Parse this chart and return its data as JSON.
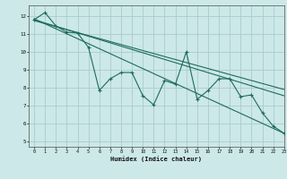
{
  "title": "",
  "xlabel": "Humidex (Indice chaleur)",
  "bg_color": "#cce8e8",
  "line_color": "#1e6b5e",
  "grid_color": "#aacccc",
  "xlim": [
    -0.5,
    23
  ],
  "ylim": [
    4.7,
    12.6
  ],
  "xticks": [
    0,
    1,
    2,
    3,
    4,
    5,
    6,
    7,
    8,
    9,
    10,
    11,
    12,
    13,
    14,
    15,
    16,
    17,
    18,
    19,
    20,
    21,
    22,
    23
  ],
  "yticks": [
    5,
    6,
    7,
    8,
    9,
    10,
    11,
    12
  ],
  "zigzag_x": [
    0,
    1,
    2,
    3,
    4,
    5,
    6,
    7,
    8,
    9,
    10,
    11,
    12,
    13,
    14,
    15,
    16,
    17,
    18,
    19,
    20,
    21,
    22,
    23
  ],
  "zigzag_y": [
    11.8,
    12.2,
    11.45,
    11.1,
    11.05,
    10.25,
    7.85,
    8.5,
    8.85,
    8.85,
    7.55,
    7.05,
    8.4,
    8.2,
    10.0,
    7.35,
    7.85,
    8.5,
    8.5,
    7.5,
    7.6,
    6.6,
    5.85,
    5.45
  ],
  "line1_x": [
    0,
    23
  ],
  "line1_y": [
    11.85,
    5.45
  ],
  "line2_x": [
    0,
    23
  ],
  "line2_y": [
    11.8,
    7.55
  ],
  "line3_x": [
    0,
    23
  ],
  "line3_y": [
    11.75,
    7.9
  ]
}
